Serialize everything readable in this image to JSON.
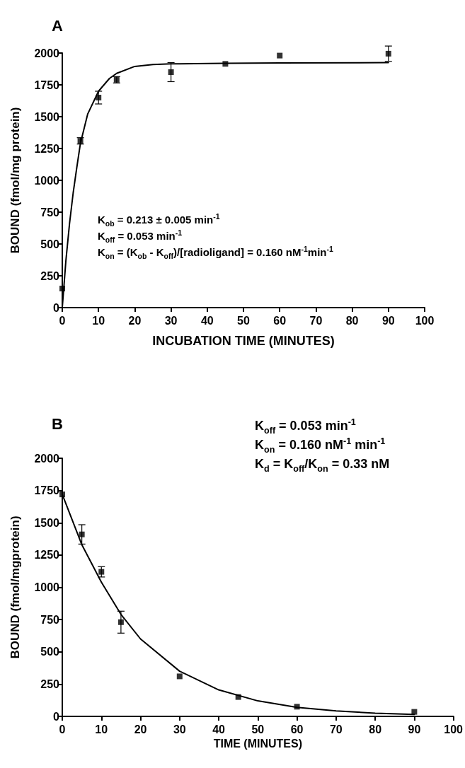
{
  "chart_data": [
    {
      "type": "scatter",
      "title": "A",
      "xlabel": "INCUBATION TIME (MINUTES)",
      "ylabel": "BOUND (fmol/mg protein)",
      "xlim": [
        0,
        100
      ],
      "xticks": [
        0,
        10,
        20,
        30,
        40,
        50,
        60,
        70,
        80,
        90,
        100
      ],
      "ylim": [
        0,
        2000
      ],
      "yticks": [
        0,
        250,
        500,
        750,
        1000,
        1250,
        1500,
        1750,
        2000
      ],
      "grid": false,
      "series": [
        {
          "marker": "square",
          "color": "#000000",
          "x": [
            0,
            5,
            10,
            15,
            30,
            45,
            60,
            90
          ],
          "values": [
            150,
            1310,
            1650,
            1790,
            1850,
            1915,
            1980,
            1995
          ],
          "errors": [
            null,
            25,
            50,
            25,
            75,
            null,
            null,
            60
          ]
        },
        {
          "type": "line",
          "marker": "none",
          "line_style": "solid",
          "color": "#000000",
          "x": [
            0,
            1,
            2,
            3,
            4,
            5,
            7,
            10,
            13,
            15,
            20,
            25,
            30,
            45,
            60,
            90
          ],
          "values": [
            0,
            370,
            660,
            900,
            1100,
            1290,
            1520,
            1700,
            1800,
            1840,
            1895,
            1910,
            1915,
            1920,
            1922,
            1925
          ]
        }
      ],
      "annotations": [
        "K$_{ob}$ = 0.213 ± 0.005 min$^{-1}$",
        "K$_{off}$ = 0.053 min$^{-1}$",
        "K$_{on}$ = (K$_{ob}$ - K$_{off}$)/[radioligand] = 0.160 nM$^{-1}$min$^{-1}$"
      ]
    },
    {
      "type": "scatter",
      "title": "B",
      "xlabel": "TIME (MINUTES)",
      "ylabel": "BOUND (fmol/mgprotein)",
      "xlim": [
        0,
        100
      ],
      "xticks": [
        0,
        10,
        20,
        30,
        40,
        50,
        60,
        70,
        80,
        90,
        100
      ],
      "ylim": [
        0,
        2000
      ],
      "yticks": [
        0,
        250,
        500,
        750,
        1000,
        1250,
        1500,
        1750,
        2000
      ],
      "grid": false,
      "series": [
        {
          "marker": "square",
          "color": "#000000",
          "x": [
            0,
            5,
            10,
            15,
            30,
            45,
            60,
            90
          ],
          "values": [
            1720,
            1410,
            1120,
            730,
            310,
            150,
            75,
            35
          ],
          "errors": [
            null,
            75,
            40,
            85,
            null,
            null,
            null,
            null
          ]
        },
        {
          "type": "line",
          "marker": "none",
          "line_style": "solid",
          "color": "#000000",
          "x": [
            0,
            5,
            10,
            15,
            20,
            30,
            40,
            50,
            60,
            70,
            80,
            90
          ],
          "values": [
            1720,
            1330,
            1040,
            790,
            600,
            350,
            205,
            120,
            70,
            42,
            25,
            15
          ]
        }
      ],
      "annotations": [
        "K$_{off}$ = 0.053 min$^{-1}$",
        "K$_{on}$ = 0.160 nM$^{-1}$ min$^{-1}$",
        "K$_{d}$ = K$_{off}$/K$_{on}$ = 0.33 nM"
      ]
    }
  ]
}
